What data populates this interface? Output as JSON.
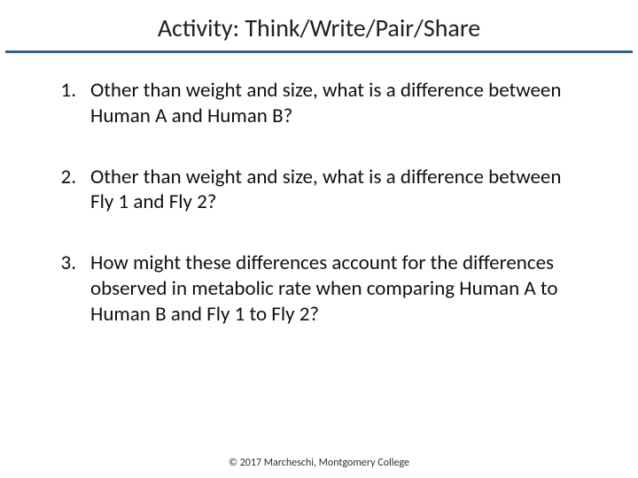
{
  "title": "Activity: Think/Write/Pair/Share",
  "divider_color": "#3a5e8c",
  "background_color": "#ffffff",
  "title_fontsize": 28,
  "body_fontsize": 23,
  "footer_fontsize": 12,
  "questions": [
    {
      "number": "1.",
      "text": "Other than weight and size, what is a difference between Human A and Human B?"
    },
    {
      "number": "2.",
      "text": "Other than weight and size, what is a difference between Fly 1 and Fly 2?"
    },
    {
      "number": "3.",
      "text": "How might these differences account for the differences observed in metabolic rate when comparing Human A to Human B and Fly 1 to Fly 2?"
    }
  ],
  "footer": "© 2017 Marcheschi, Montgomery College"
}
